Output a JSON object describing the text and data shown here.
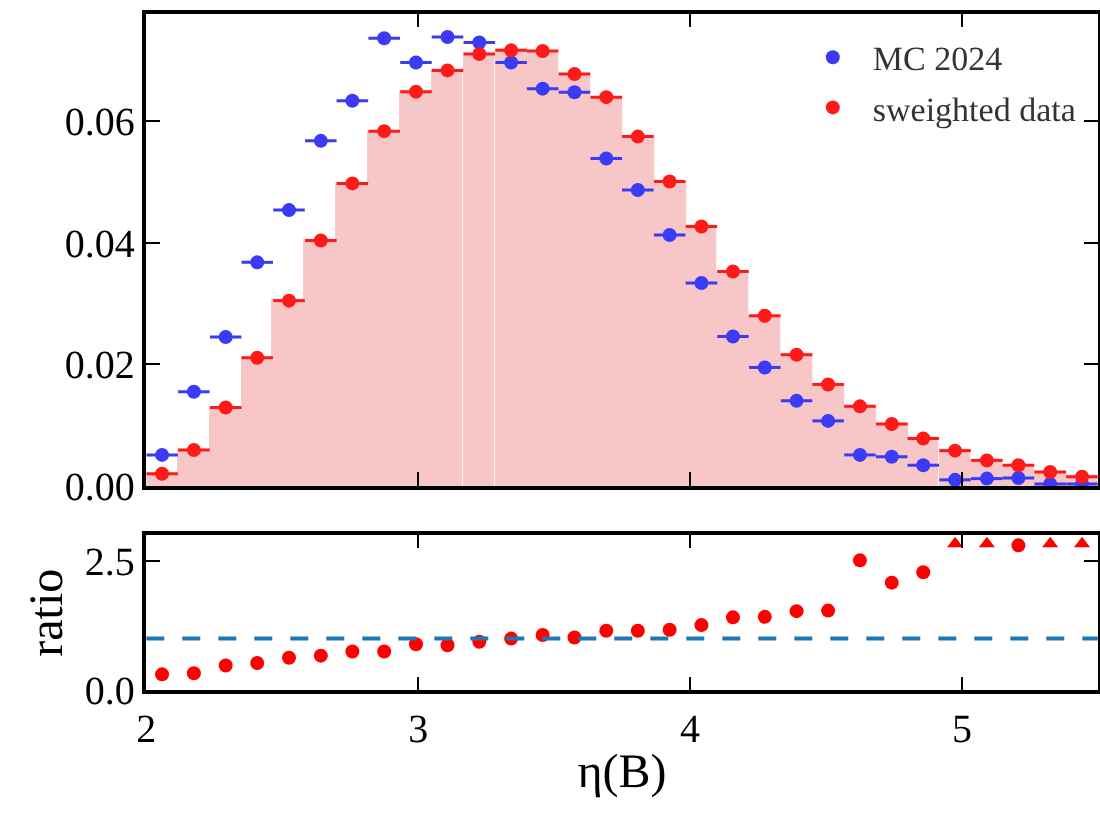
{
  "chart_data": [
    {
      "type": "scatter",
      "xlim": [
        2,
        5.5
      ],
      "xticks": [
        2,
        3,
        4,
        5
      ],
      "ylim": [
        0,
        0.0777
      ],
      "yticks": [
        {
          "value": 0,
          "label": "0.00"
        },
        {
          "value": 0.02,
          "label": "0.02"
        },
        {
          "value": 0.04,
          "label": "0.04"
        },
        {
          "value": 0.06,
          "label": "0.06"
        }
      ],
      "tick_labels": "y",
      "legend": "top right",
      "marker": "circle",
      "x": [
        2.058,
        2.175,
        2.292,
        2.408,
        2.525,
        2.642,
        2.758,
        2.875,
        2.992,
        3.108,
        3.225,
        3.342,
        3.458,
        3.575,
        3.692,
        3.808,
        3.925,
        4.042,
        4.158,
        4.275,
        4.392,
        4.508,
        4.625,
        4.742,
        4.858,
        4.975,
        5.092,
        5.208,
        5.325,
        5.442
      ],
      "series": [
        {
          "type": "bar",
          "color": "#f7c6c6",
          "values": [
            0.002,
            0.0059,
            0.0129,
            0.0211,
            0.0305,
            0.0404,
            0.0498,
            0.0584,
            0.0649,
            0.0684,
            0.0711,
            0.0717,
            0.0716,
            0.0678,
            0.064,
            0.0575,
            0.0501,
            0.0427,
            0.0353,
            0.028,
            0.0216,
            0.0167,
            0.0131,
            0.0102,
            0.0078,
            0.0058,
            0.0042,
            0.0034,
            0.0023,
            0.0015
          ]
        },
        {
          "name": "MC 2024",
          "color": "#3b3bf5",
          "values": [
            0.0051,
            0.0155,
            0.0245,
            0.0368,
            0.0454,
            0.0568,
            0.0634,
            0.0737,
            0.0697,
            0.0739,
            0.073,
            0.0697,
            0.0654,
            0.0648,
            0.0539,
            0.0487,
            0.0413,
            0.0334,
            0.0246,
            0.0195,
            0.014,
            0.0107,
            0.0051,
            0.0048,
            0.0034,
            0.001,
            0.0012,
            0.0013,
            0.0003,
            0.0003
          ],
          "xerrors": [
            0.058,
            0.058,
            0.058,
            0.058,
            0.058,
            0.058,
            0.058,
            0.058,
            0.058,
            0.058,
            0.058,
            0.058,
            0.058,
            0.058,
            0.058,
            0.058,
            0.058,
            0.058,
            0.058,
            0.058,
            0.058,
            0.058,
            0.058,
            0.058,
            0.058,
            0.058,
            0.058,
            0.058,
            0.058,
            0.058
          ]
        },
        {
          "name": "sweighted data",
          "color": "#ff1a1a",
          "values": [
            0.002,
            0.0059,
            0.0129,
            0.0211,
            0.0305,
            0.0404,
            0.0498,
            0.0584,
            0.0649,
            0.0684,
            0.0711,
            0.0717,
            0.0716,
            0.0678,
            0.064,
            0.0575,
            0.0501,
            0.0427,
            0.0353,
            0.028,
            0.0216,
            0.0167,
            0.0131,
            0.0102,
            0.0078,
            0.0058,
            0.0042,
            0.0034,
            0.0023,
            0.0015
          ],
          "xerrors": [
            0.058,
            0.058,
            0.058,
            0.058,
            0.058,
            0.058,
            0.058,
            0.058,
            0.058,
            0.058,
            0.058,
            0.058,
            0.058,
            0.058,
            0.058,
            0.058,
            0.058,
            0.058,
            0.058,
            0.058,
            0.058,
            0.058,
            0.058,
            0.058,
            0.058,
            0.058,
            0.058,
            0.058,
            0.058,
            0.058
          ]
        }
      ]
    },
    {
      "type": "scatter",
      "xlim": [
        2,
        5.5
      ],
      "xticks": [
        2,
        3,
        4,
        5
      ],
      "ylim": [
        0,
        3
      ],
      "yticks": [
        {
          "value": 0,
          "label": "0.0"
        },
        {
          "value": 2.5,
          "label": "2.5"
        }
      ],
      "xlabel": "η(B)",
      "ylabel": "ratio",
      "marker": "circle",
      "ref_lines": [
        {
          "axis": "y",
          "value": 1,
          "color": "#1f77b4",
          "line_style": "dashed"
        }
      ],
      "x": [
        2.058,
        2.175,
        2.292,
        2.408,
        2.525,
        2.642,
        2.758,
        2.875,
        2.992,
        3.108,
        3.225,
        3.342,
        3.458,
        3.575,
        3.692,
        3.808,
        3.925,
        4.042,
        4.158,
        4.275,
        4.392,
        4.508,
        4.625,
        4.742,
        4.858,
        4.975,
        5.092,
        5.208,
        5.325,
        5.442
      ],
      "series": [
        {
          "color": "#ff0000",
          "values": [
            0.31,
            0.33,
            0.48,
            0.53,
            0.63,
            0.67,
            0.75,
            0.75,
            0.89,
            0.87,
            0.94,
            1.0,
            1.07,
            1.02,
            1.15,
            1.15,
            1.17,
            1.26,
            1.41,
            1.42,
            1.53,
            1.54,
            2.51,
            2.08,
            2.28,
            null,
            null,
            2.8,
            null,
            null
          ]
        },
        {
          "color": "#ff0000",
          "marker": "triangle",
          "values": [
            null,
            null,
            null,
            null,
            null,
            null,
            null,
            null,
            null,
            null,
            null,
            null,
            null,
            null,
            null,
            null,
            null,
            null,
            null,
            null,
            null,
            null,
            null,
            null,
            null,
            2.83,
            2.83,
            null,
            2.83,
            2.83
          ]
        }
      ]
    }
  ]
}
